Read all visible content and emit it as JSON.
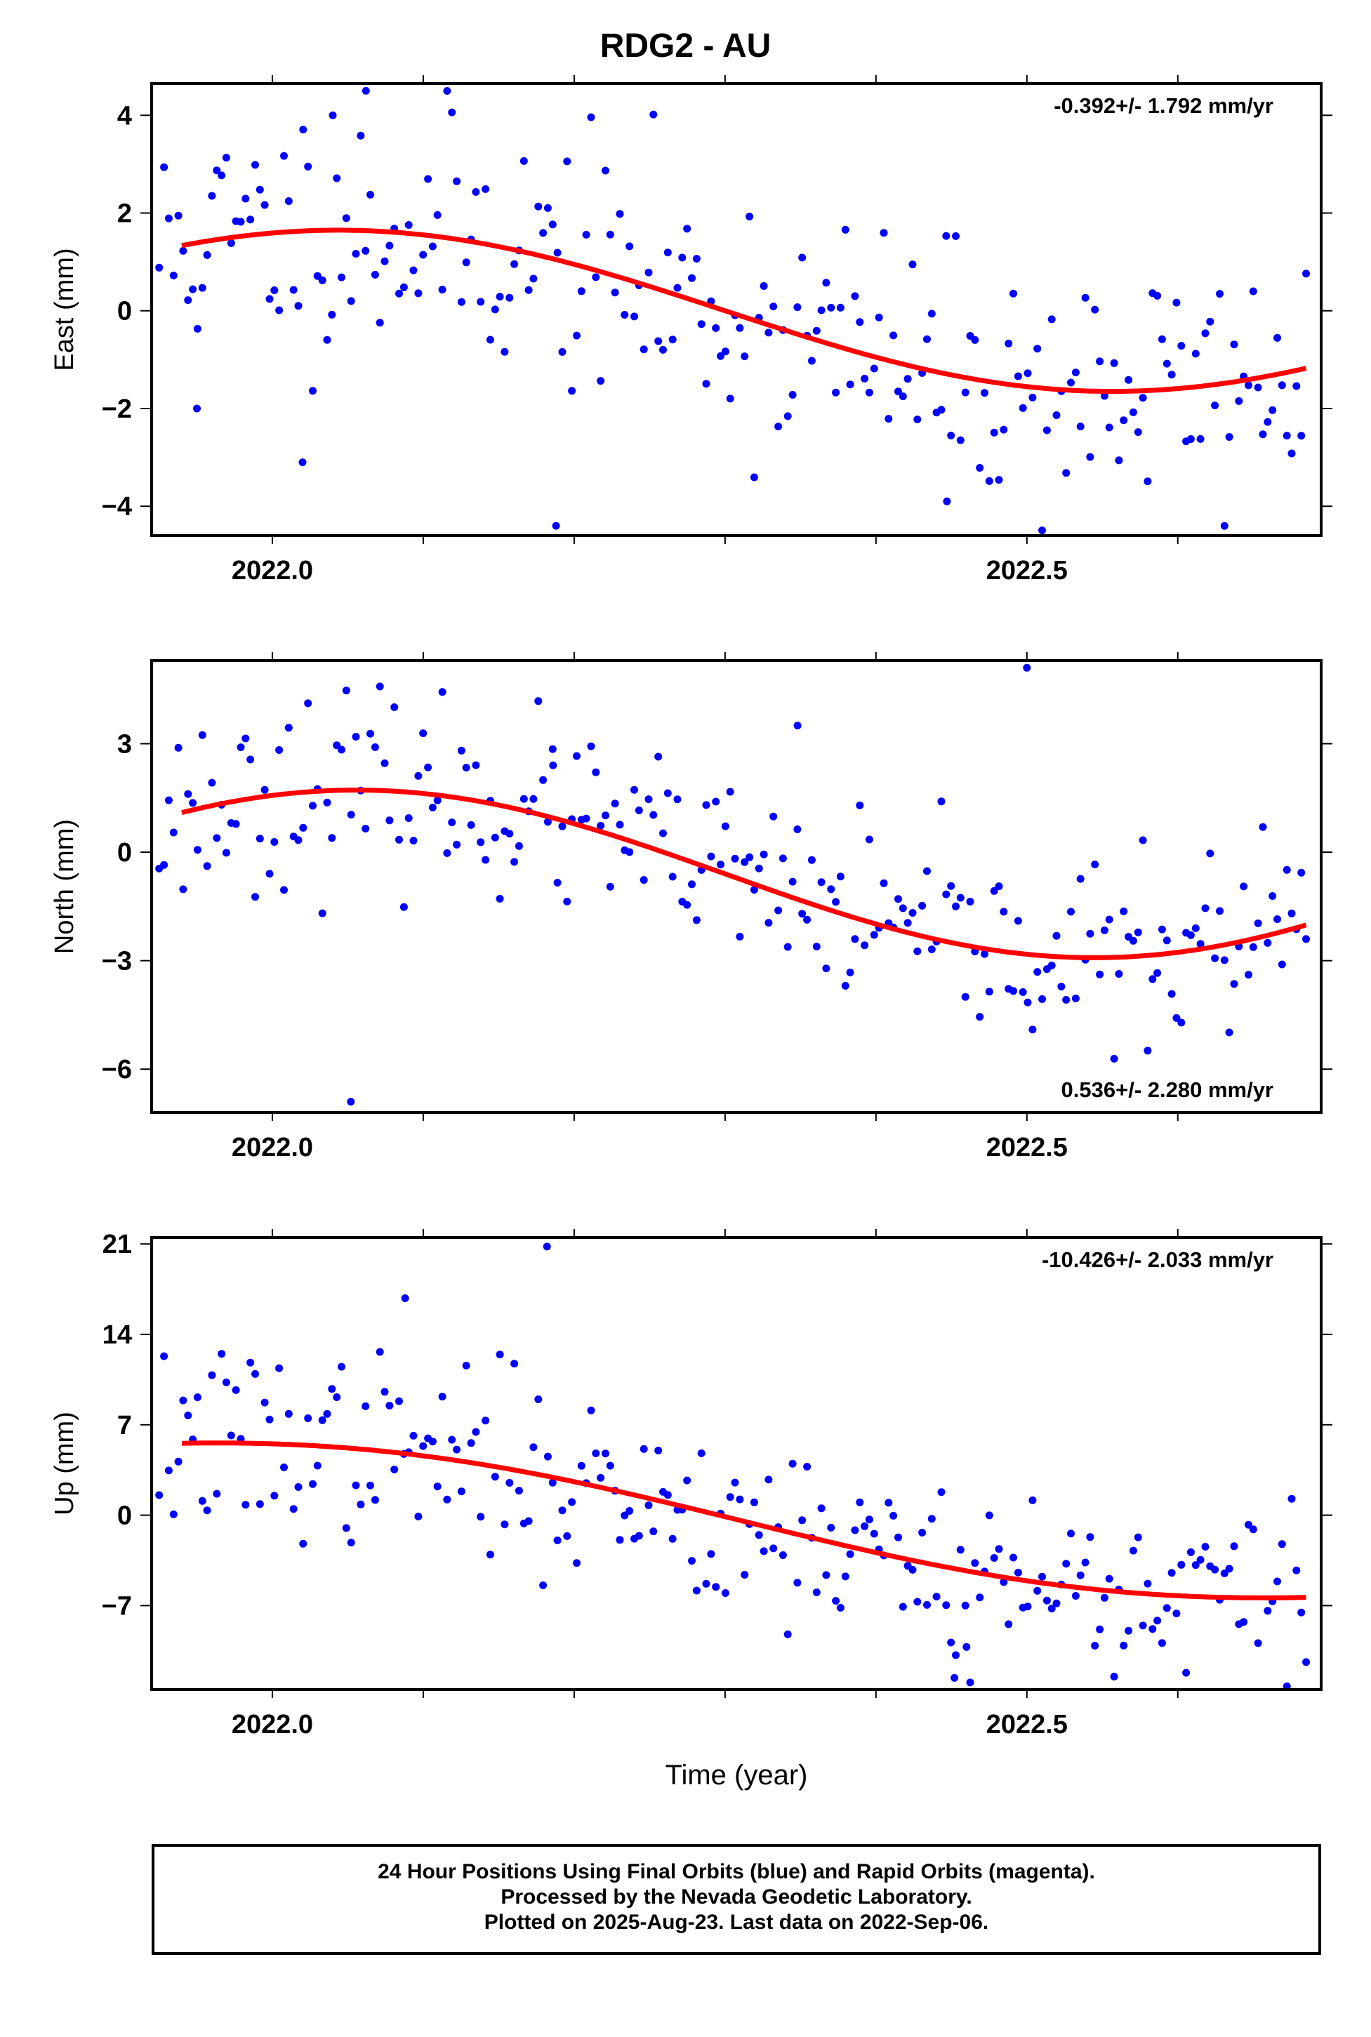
{
  "title": "RDG2 - AU",
  "footer": {
    "line1": "24 Hour Positions Using Final Orbits (blue) and Rapid Orbits (magenta).",
    "line2": "Processed by the Nevada Geodetic Laboratory.",
    "line3": "Plotted on 2025-Aug-23. Last data on 2022-Sep-06."
  },
  "chart_data": [
    {
      "type": "scatter",
      "ylabel": "East (mm)",
      "xlabel": "",
      "xlim": [
        2021.92,
        2022.695
      ],
      "ylim": [
        -4.6,
        4.65
      ],
      "yticks": [
        4,
        2,
        0,
        -2,
        -4
      ],
      "xticks": [
        "2022.0",
        "2022.5"
      ],
      "rate_label": "-0.392+/- 1.792 mm/yr",
      "rate_position": "top-right",
      "series": [
        {
          "kind": "points",
          "color": "#0000ff",
          "seed": 11,
          "noise": 1.3,
          "n": 240,
          "outliers": [
            [
              2022.02,
              -3.1
            ],
            [
              2022.188,
              -4.4
            ],
            [
              2021.95,
              -2.0
            ],
            [
              2022.04,
              4.0
            ],
            [
              2022.062,
              4.5
            ],
            [
              2022.447,
              -3.9
            ]
          ]
        },
        {
          "kind": "fit",
          "color": "#ff0000",
          "mean": 0.0,
          "trend": -0.392,
          "amp": 1.55,
          "phase_year": 2022.05
        }
      ]
    },
    {
      "type": "scatter",
      "ylabel": "North (mm)",
      "xlabel": "",
      "xlim": [
        2021.92,
        2022.695
      ],
      "ylim": [
        -7.2,
        5.3
      ],
      "yticks": [
        3,
        0,
        -3,
        -6
      ],
      "xticks": [
        "2022.0",
        "2022.5"
      ],
      "rate_label": "0.536+/- 2.280 mm/yr",
      "rate_position": "bottom-right",
      "series": [
        {
          "kind": "points",
          "color": "#0000ff",
          "seed": 23,
          "noise": 1.25,
          "n": 240,
          "outliers": [
            [
              2022.052,
              -6.9
            ],
            [
              2022.5,
              5.1
            ],
            [
              2022.348,
              3.5
            ],
            [
              2022.186,
              2.4
            ]
          ]
        },
        {
          "kind": "fit",
          "color": "#ff0000",
          "mean": -0.6,
          "trend": 0.536,
          "amp": 2.45,
          "phase_year": 2022.05
        }
      ]
    },
    {
      "type": "scatter",
      "ylabel": "Up (mm)",
      "xlabel": "Time (year)",
      "xlim": [
        2021.92,
        2022.695
      ],
      "ylim": [
        -13.5,
        21.5
      ],
      "yticks": [
        21,
        14,
        7,
        0,
        -7
      ],
      "xticks": [
        "2022.0",
        "2022.5"
      ],
      "rate_label": "-10.426+/- 2.033 mm/yr",
      "rate_position": "top-right",
      "series": [
        {
          "kind": "points",
          "color": "#0000ff",
          "seed": 37,
          "noise": 3.6,
          "n": 240,
          "outliers": [
            [
              2022.182,
              20.8
            ],
            [
              2022.088,
              16.8
            ],
            [
              2022.452,
              -12.6
            ],
            [
              2022.46,
              -10.2
            ]
          ]
        },
        {
          "kind": "fit",
          "color": "#ff0000",
          "mean": -0.3,
          "trend": -10.426,
          "amp": 2.9,
          "phase_year": 2022.06
        }
      ]
    }
  ]
}
